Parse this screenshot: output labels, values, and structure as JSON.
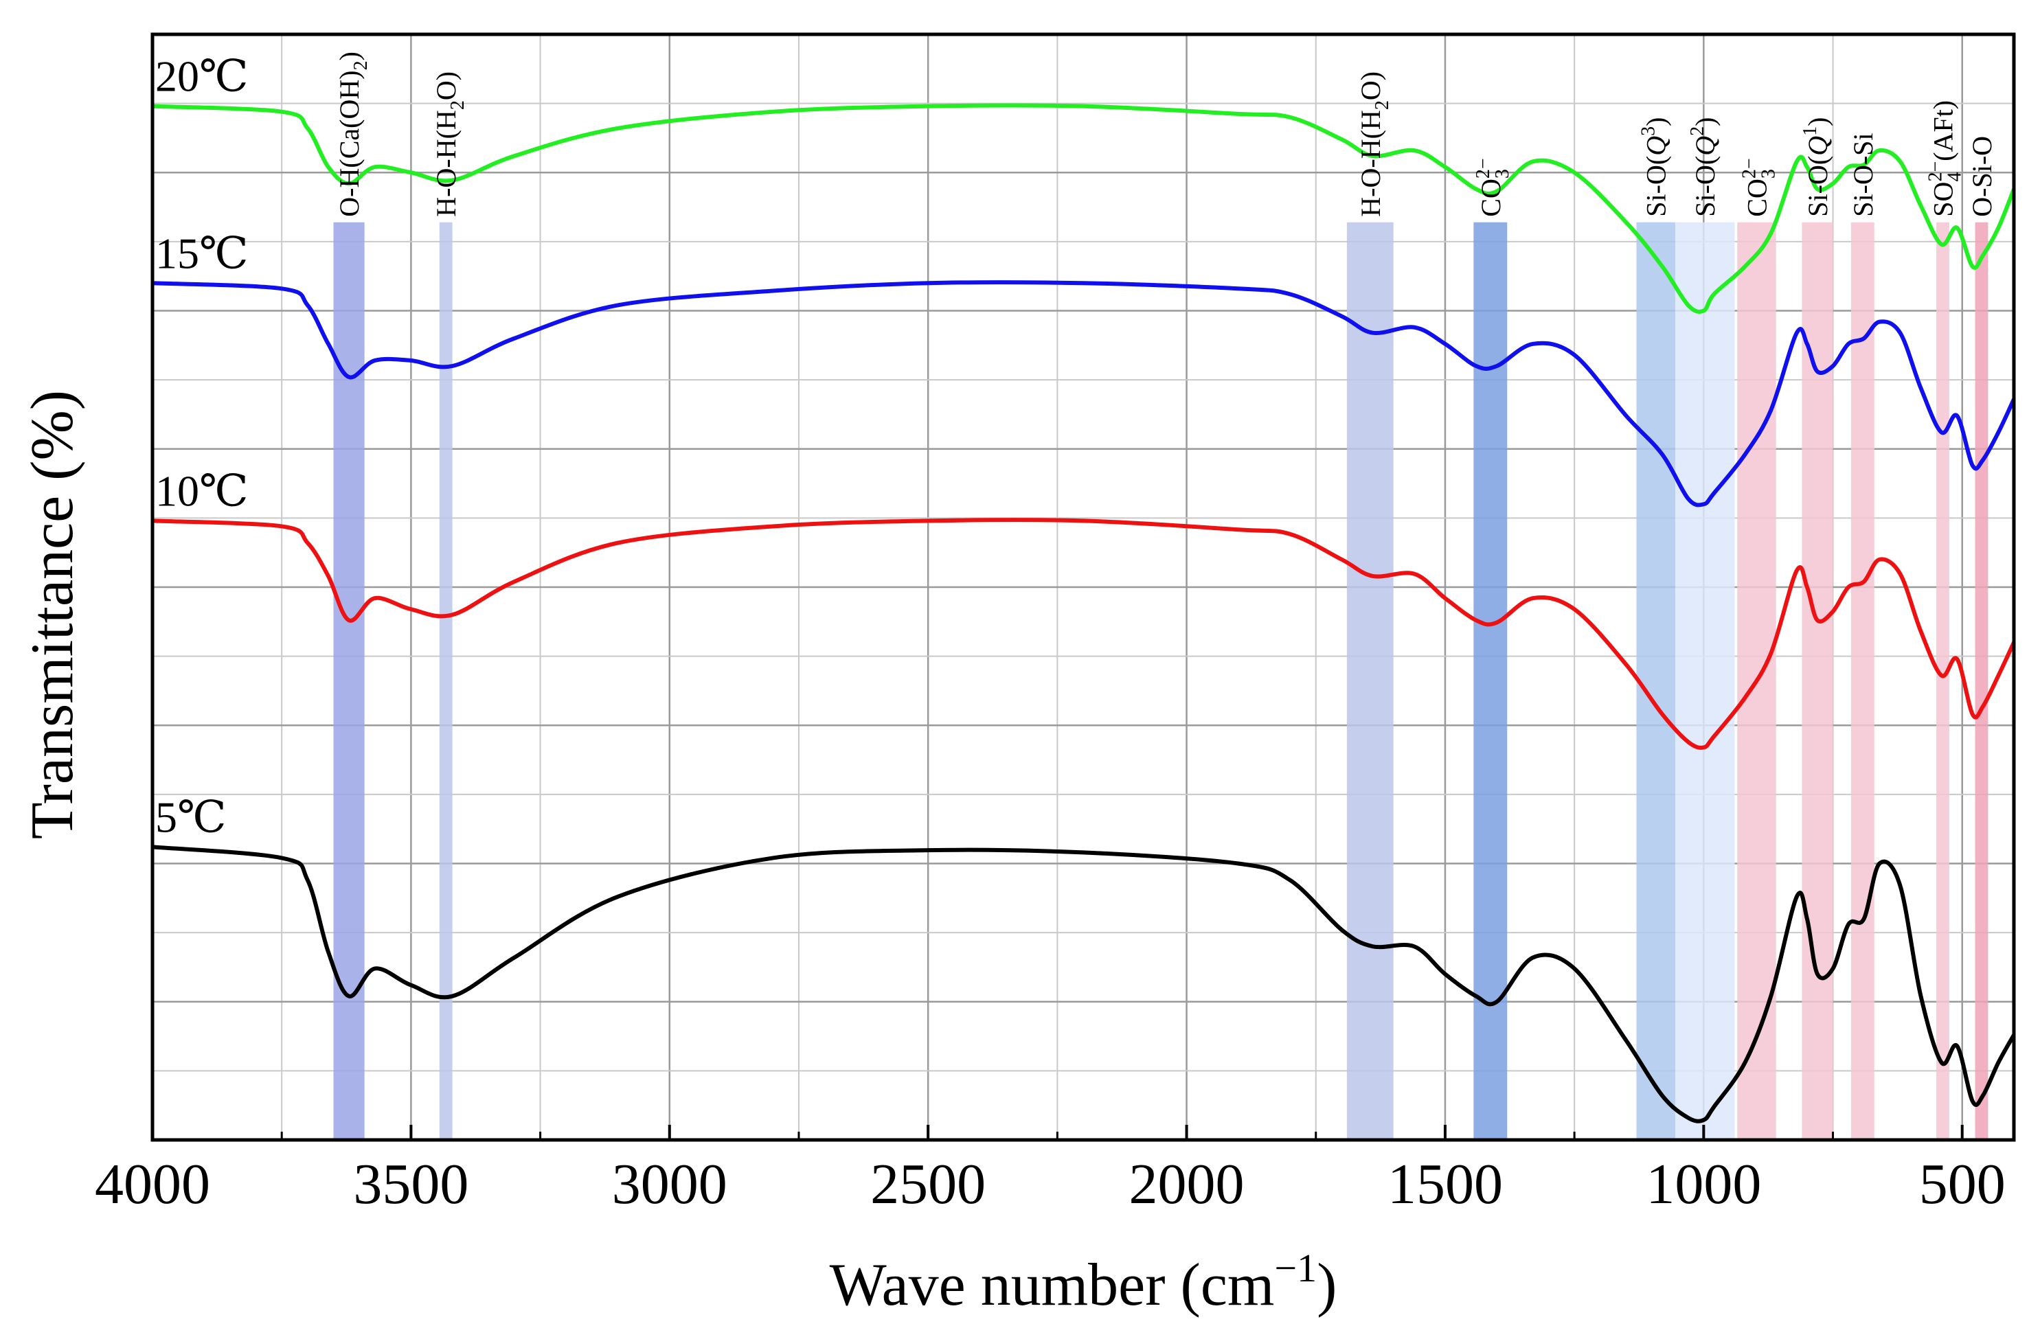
{
  "chart_data": {
    "type": "line",
    "xlabel": "Wave number (cm",
    "xlabel_sup": "−1",
    "xlabel_end": ")",
    "ylabel": "Transmittance (%)",
    "xlim": [
      4000,
      400
    ],
    "x_ticks": [
      4000,
      3500,
      3000,
      2500,
      2000,
      1500,
      1000,
      500
    ],
    "x_tick_labels": [
      "4000",
      "3500",
      "3000",
      "2500",
      "2000",
      "1500",
      "1000",
      "500"
    ],
    "ylim": [
      0,
      1
    ],
    "grid": true,
    "band_colors": {
      "blue": "#9aa6e6",
      "lightblue": "#bcc6ea",
      "deepblue": "#7ca0e2",
      "skyblue": "#aec8ee",
      "paleblue": "#dce8fa",
      "pink": "#f3c6d2",
      "hotpink": "#f0a3b8"
    },
    "bands": [
      {
        "id": "oh-caoh2",
        "x": [
          3650,
          3590
        ],
        "color": "blue",
        "label": "O-H(Ca(OH)",
        "label_sub": "2",
        "label_end": ")"
      },
      {
        "id": "hoh-3430",
        "x": [
          3445,
          3420
        ],
        "color": "lightblue",
        "label": "H-O-H(H",
        "label_sub": "2",
        "label_end": "O)"
      },
      {
        "id": "hoh-1640",
        "x": [
          1690,
          1600
        ],
        "color": "lightblue",
        "label": "H-O-H(H",
        "label_sub": "2",
        "label_end": "O)"
      },
      {
        "id": "co3-1420",
        "x": [
          1445,
          1380
        ],
        "color": "deepblue",
        "label": "CO",
        "label_sub": "3",
        "label_sup": "2−"
      },
      {
        "id": "si-q3",
        "x": [
          1130,
          1055
        ],
        "color": "skyblue",
        "label": "Si-O(",
        "label_italic": "Q",
        "label_sup": "3",
        "label_end": ")"
      },
      {
        "id": "si-q2",
        "x": [
          1055,
          940
        ],
        "color": "paleblue",
        "label": "Si-O(",
        "label_italic": "Q",
        "label_sup": "2",
        "label_end": ")"
      },
      {
        "id": "co3-875",
        "x": [
          935,
          860
        ],
        "color": "pink",
        "label": "CO",
        "label_sub": "3",
        "label_sup": "2−"
      },
      {
        "id": "si-q1",
        "x": [
          810,
          750
        ],
        "color": "pink",
        "label": "Si-O(",
        "label_italic": "Q",
        "label_sup": "1",
        "label_end": ")"
      },
      {
        "id": "si-o-si",
        "x": [
          715,
          670
        ],
        "color": "pink",
        "label": "Si-O-Si"
      },
      {
        "id": "so4-aft",
        "x": [
          550,
          525
        ],
        "color": "pink",
        "label": "SO",
        "label_sub": "4",
        "label_sup": "2−",
        "label_end": "(AFt)"
      },
      {
        "id": "o-si-o",
        "x": [
          475,
          450
        ],
        "color": "hotpink",
        "label": "O-Si-O"
      }
    ],
    "series": [
      {
        "name": "20℃",
        "color": "#22ee22",
        "offset": 0.77,
        "points": [
          [
            4000,
            0.935
          ],
          [
            3750,
            0.93
          ],
          [
            3700,
            0.915
          ],
          [
            3660,
            0.88
          ],
          [
            3620,
            0.865
          ],
          [
            3570,
            0.88
          ],
          [
            3500,
            0.875
          ],
          [
            3420,
            0.868
          ],
          [
            3300,
            0.89
          ],
          [
            3100,
            0.915
          ],
          [
            2800,
            0.93
          ],
          [
            2500,
            0.935
          ],
          [
            2200,
            0.935
          ],
          [
            1900,
            0.928
          ],
          [
            1800,
            0.925
          ],
          [
            1700,
            0.905
          ],
          [
            1640,
            0.89
          ],
          [
            1560,
            0.895
          ],
          [
            1500,
            0.88
          ],
          [
            1440,
            0.86
          ],
          [
            1400,
            0.858
          ],
          [
            1330,
            0.885
          ],
          [
            1250,
            0.875
          ],
          [
            1150,
            0.83
          ],
          [
            1080,
            0.79
          ],
          [
            1030,
            0.755
          ],
          [
            1000,
            0.75
          ],
          [
            980,
            0.765
          ],
          [
            920,
            0.79
          ],
          [
            870,
            0.82
          ],
          [
            820,
            0.885
          ],
          [
            800,
            0.88
          ],
          [
            780,
            0.86
          ],
          [
            750,
            0.865
          ],
          [
            720,
            0.88
          ],
          [
            690,
            0.882
          ],
          [
            660,
            0.895
          ],
          [
            620,
            0.885
          ],
          [
            580,
            0.845
          ],
          [
            540,
            0.81
          ],
          [
            510,
            0.825
          ],
          [
            480,
            0.79
          ],
          [
            460,
            0.8
          ],
          [
            430,
            0.825
          ],
          [
            400,
            0.86
          ]
        ]
      },
      {
        "name": "15℃",
        "color": "#1010ee",
        "offset": 0.61,
        "points": [
          [
            4000,
            0.775
          ],
          [
            3750,
            0.77
          ],
          [
            3700,
            0.755
          ],
          [
            3660,
            0.72
          ],
          [
            3620,
            0.69
          ],
          [
            3570,
            0.705
          ],
          [
            3500,
            0.705
          ],
          [
            3420,
            0.7
          ],
          [
            3300,
            0.725
          ],
          [
            3100,
            0.755
          ],
          [
            2800,
            0.768
          ],
          [
            2500,
            0.775
          ],
          [
            2200,
            0.775
          ],
          [
            1900,
            0.77
          ],
          [
            1800,
            0.765
          ],
          [
            1700,
            0.745
          ],
          [
            1640,
            0.73
          ],
          [
            1560,
            0.735
          ],
          [
            1500,
            0.72
          ],
          [
            1440,
            0.7
          ],
          [
            1400,
            0.7
          ],
          [
            1330,
            0.72
          ],
          [
            1250,
            0.71
          ],
          [
            1150,
            0.655
          ],
          [
            1080,
            0.62
          ],
          [
            1030,
            0.58
          ],
          [
            1000,
            0.575
          ],
          [
            980,
            0.585
          ],
          [
            920,
            0.62
          ],
          [
            870,
            0.66
          ],
          [
            820,
            0.73
          ],
          [
            800,
            0.72
          ],
          [
            780,
            0.695
          ],
          [
            750,
            0.7
          ],
          [
            720,
            0.72
          ],
          [
            690,
            0.725
          ],
          [
            660,
            0.74
          ],
          [
            620,
            0.73
          ],
          [
            580,
            0.68
          ],
          [
            540,
            0.64
          ],
          [
            510,
            0.655
          ],
          [
            480,
            0.61
          ],
          [
            460,
            0.615
          ],
          [
            430,
            0.64
          ],
          [
            400,
            0.67
          ]
        ]
      },
      {
        "name": "10℃",
        "color": "#ee1111",
        "offset": 0.41,
        "points": [
          [
            4000,
            0.56
          ],
          [
            3750,
            0.555
          ],
          [
            3700,
            0.54
          ],
          [
            3660,
            0.51
          ],
          [
            3620,
            0.47
          ],
          [
            3570,
            0.49
          ],
          [
            3500,
            0.48
          ],
          [
            3420,
            0.475
          ],
          [
            3300,
            0.505
          ],
          [
            3100,
            0.54
          ],
          [
            2800,
            0.555
          ],
          [
            2500,
            0.56
          ],
          [
            2200,
            0.56
          ],
          [
            1900,
            0.552
          ],
          [
            1800,
            0.548
          ],
          [
            1700,
            0.525
          ],
          [
            1640,
            0.51
          ],
          [
            1560,
            0.512
          ],
          [
            1500,
            0.49
          ],
          [
            1440,
            0.47
          ],
          [
            1400,
            0.468
          ],
          [
            1330,
            0.49
          ],
          [
            1250,
            0.48
          ],
          [
            1150,
            0.43
          ],
          [
            1080,
            0.385
          ],
          [
            1030,
            0.36
          ],
          [
            1000,
            0.355
          ],
          [
            980,
            0.365
          ],
          [
            920,
            0.4
          ],
          [
            870,
            0.44
          ],
          [
            820,
            0.515
          ],
          [
            800,
            0.5
          ],
          [
            780,
            0.47
          ],
          [
            750,
            0.478
          ],
          [
            720,
            0.5
          ],
          [
            690,
            0.505
          ],
          [
            660,
            0.525
          ],
          [
            620,
            0.512
          ],
          [
            580,
            0.46
          ],
          [
            540,
            0.42
          ],
          [
            510,
            0.435
          ],
          [
            480,
            0.385
          ],
          [
            460,
            0.392
          ],
          [
            430,
            0.42
          ],
          [
            400,
            0.45
          ]
        ]
      },
      {
        "name": "5℃",
        "color": "#000000",
        "offset": 0.13,
        "points": [
          [
            4000,
            0.265
          ],
          [
            3750,
            0.255
          ],
          [
            3700,
            0.235
          ],
          [
            3660,
            0.17
          ],
          [
            3620,
            0.13
          ],
          [
            3570,
            0.155
          ],
          [
            3500,
            0.14
          ],
          [
            3420,
            0.13
          ],
          [
            3300,
            0.165
          ],
          [
            3100,
            0.22
          ],
          [
            2800,
            0.255
          ],
          [
            2500,
            0.262
          ],
          [
            2200,
            0.26
          ],
          [
            1900,
            0.25
          ],
          [
            1800,
            0.235
          ],
          [
            1700,
            0.19
          ],
          [
            1640,
            0.175
          ],
          [
            1560,
            0.175
          ],
          [
            1500,
            0.15
          ],
          [
            1440,
            0.13
          ],
          [
            1400,
            0.125
          ],
          [
            1330,
            0.165
          ],
          [
            1250,
            0.155
          ],
          [
            1150,
            0.09
          ],
          [
            1080,
            0.04
          ],
          [
            1030,
            0.02
          ],
          [
            1000,
            0.018
          ],
          [
            980,
            0.03
          ],
          [
            920,
            0.07
          ],
          [
            870,
            0.13
          ],
          [
            820,
            0.22
          ],
          [
            800,
            0.2
          ],
          [
            780,
            0.15
          ],
          [
            750,
            0.155
          ],
          [
            720,
            0.195
          ],
          [
            690,
            0.2
          ],
          [
            660,
            0.25
          ],
          [
            620,
            0.23
          ],
          [
            580,
            0.13
          ],
          [
            540,
            0.07
          ],
          [
            510,
            0.085
          ],
          [
            480,
            0.035
          ],
          [
            460,
            0.04
          ],
          [
            430,
            0.07
          ],
          [
            400,
            0.095
          ]
        ]
      }
    ]
  }
}
